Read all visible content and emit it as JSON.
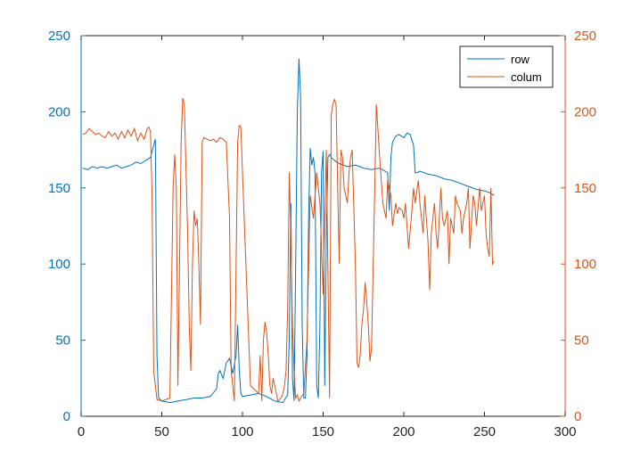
{
  "chart_data": {
    "type": "line",
    "title": "",
    "xlabel": "",
    "ylabel": "",
    "xlim": [
      0,
      300
    ],
    "ylim_left": [
      0,
      250
    ],
    "ylim_right": [
      0,
      250
    ],
    "x_ticks": [
      0,
      50,
      100,
      150,
      200,
      250,
      300
    ],
    "y_ticks_left": [
      0,
      50,
      100,
      150,
      200,
      250
    ],
    "y_ticks_right": [
      0,
      50,
      100,
      150,
      200,
      250
    ],
    "grid": false,
    "legend_position": "top-right",
    "series": [
      {
        "name": "row",
        "axis": "left",
        "color": "#0072BD",
        "x": [
          1,
          4,
          7,
          10,
          13,
          16,
          19,
          22,
          25,
          28,
          31,
          34,
          37,
          40,
          43,
          45,
          46,
          47,
          48,
          50,
          55,
          60,
          65,
          70,
          75,
          80,
          84,
          85,
          86,
          88,
          90,
          92,
          94,
          96,
          97,
          98,
          99,
          100,
          105,
          110,
          115,
          120,
          125,
          128,
          129,
          130,
          131,
          132,
          133,
          134,
          135,
          136,
          137,
          138,
          139,
          140,
          141,
          142,
          143,
          144,
          145,
          146,
          147,
          148,
          149,
          150,
          151,
          152,
          153,
          154,
          155,
          157,
          160,
          165,
          170,
          175,
          180,
          185,
          190,
          191,
          192,
          193,
          195,
          197,
          200,
          202,
          204,
          206,
          207,
          208,
          210,
          215,
          220,
          225,
          230,
          235,
          240,
          245,
          250,
          253,
          256
        ],
        "y": [
          163,
          162,
          164,
          163,
          164,
          163,
          164,
          165,
          163,
          164,
          165,
          167,
          166,
          168,
          170,
          178,
          182,
          40,
          12,
          10,
          9,
          10,
          11,
          12,
          12,
          13,
          18,
          28,
          30,
          25,
          35,
          38,
          28,
          40,
          60,
          30,
          15,
          13,
          14,
          15,
          13,
          10,
          9,
          14,
          50,
          140,
          25,
          10,
          100,
          200,
          235,
          210,
          60,
          12,
          12,
          40,
          130,
          176,
          165,
          170,
          160,
          20,
          12,
          60,
          160,
          174,
          20,
          120,
          170,
          172,
          170,
          168,
          166,
          164,
          165,
          163,
          162,
          163,
          160,
          135,
          170,
          180,
          184,
          185,
          183,
          186,
          185,
          178,
          160,
          160,
          161,
          159,
          158,
          156,
          155,
          153,
          151,
          149,
          148,
          147,
          145
        ]
      },
      {
        "name": "colum",
        "axis": "right",
        "color": "#D95319",
        "x": [
          1,
          3,
          5,
          7,
          9,
          11,
          13,
          15,
          17,
          19,
          21,
          23,
          25,
          27,
          29,
          31,
          33,
          35,
          37,
          39,
          41,
          42,
          43,
          44,
          45,
          47,
          50,
          55,
          57,
          58,
          59,
          60,
          62,
          63,
          64,
          66,
          67,
          68,
          69,
          70,
          71,
          72,
          73,
          74,
          75,
          76,
          78,
          80,
          82,
          84,
          86,
          88,
          90,
          92,
          93,
          95,
          97,
          98,
          99,
          100,
          105,
          110,
          111,
          112,
          113,
          114,
          115,
          116,
          117,
          118,
          119,
          120,
          122,
          124,
          125,
          126,
          127,
          128,
          129,
          130,
          131,
          132,
          133,
          134,
          135,
          136,
          138,
          140,
          142,
          144,
          146,
          148,
          150,
          152,
          154,
          155,
          156,
          157,
          158,
          159,
          160,
          161,
          162,
          163,
          165,
          166,
          167,
          168,
          170,
          171,
          172,
          173,
          174,
          175,
          176,
          177,
          178,
          179,
          180,
          182,
          183,
          185,
          187,
          189,
          190,
          192,
          193,
          195,
          196,
          197,
          199,
          200,
          201,
          203,
          205,
          206,
          207,
          209,
          210,
          212,
          213,
          215,
          216,
          217,
          219,
          220,
          221,
          223,
          224,
          225,
          227,
          228,
          229,
          231,
          232,
          233,
          235,
          236,
          237,
          239,
          240,
          241,
          243,
          244,
          245,
          247,
          248,
          250,
          251,
          252,
          253,
          254,
          255,
          256
        ],
        "y": [
          185,
          186,
          189,
          187,
          185,
          186,
          184,
          183,
          187,
          184,
          186,
          182,
          187,
          183,
          188,
          184,
          189,
          181,
          186,
          182,
          189,
          190,
          187,
          145,
          30,
          11,
          10,
          12,
          150,
          172,
          150,
          20,
          180,
          209,
          205,
          120,
          60,
          30,
          100,
          135,
          125,
          130,
          100,
          60,
          180,
          183,
          182,
          181,
          182,
          180,
          183,
          182,
          180,
          130,
          30,
          10,
          180,
          191,
          190,
          160,
          20,
          15,
          40,
          10,
          50,
          62,
          55,
          40,
          20,
          15,
          25,
          20,
          10,
          12,
          15,
          20,
          30,
          70,
          160,
          120,
          60,
          30,
          12,
          14,
          10,
          12,
          15,
          50,
          145,
          130,
          160,
          140,
          80,
          175,
          12,
          198,
          205,
          208,
          205,
          150,
          100,
          175,
          170,
          150,
          140,
          160,
          170,
          175,
          100,
          35,
          32,
          40,
          60,
          70,
          88,
          75,
          60,
          36,
          45,
          150,
          205,
          170,
          140,
          130,
          155,
          145,
          125,
          140,
          133,
          137,
          135,
          130,
          140,
          110,
          135,
          150,
          140,
          155,
          140,
          120,
          145,
          115,
          83,
          120,
          140,
          120,
          110,
          150,
          130,
          125,
          135,
          100,
          130,
          120,
          145,
          140,
          135,
          120,
          130,
          140,
          150,
          110,
          145,
          140,
          125,
          150,
          135,
          145,
          120,
          110,
          105,
          150,
          100,
          102
        ]
      }
    ]
  }
}
